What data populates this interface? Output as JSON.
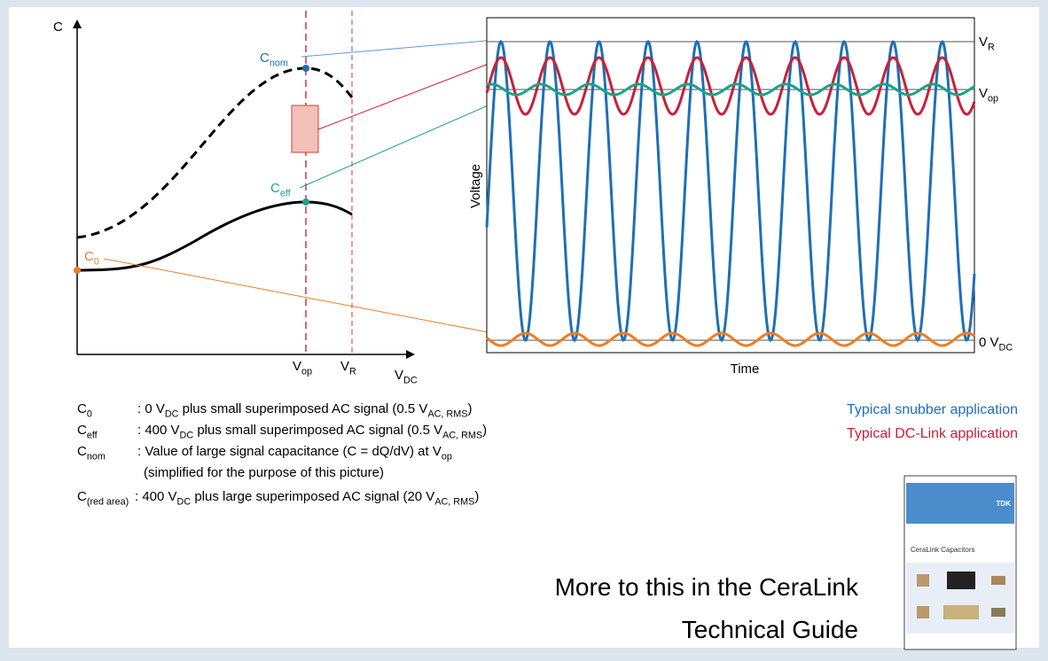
{
  "left_chart": {
    "y_axis": "C",
    "x_axis": [
      "V",
      "DC"
    ],
    "x_markers": [
      [
        "V",
        "op"
      ],
      [
        "V",
        "R"
      ]
    ],
    "points": {
      "nominal": [
        "C",
        "nom"
      ],
      "effective": [
        "C",
        "eff"
      ],
      "zero": [
        "C",
        "0"
      ]
    }
  },
  "right_chart": {
    "y_axis": "Voltage",
    "x_axis": "Time",
    "levels": [
      [
        "V",
        "R"
      ],
      [
        "V",
        "op"
      ],
      [
        "0 V",
        "DC"
      ]
    ]
  },
  "definitions": [
    {
      "term": [
        "C",
        "0"
      ],
      "lines": [
        [
          ": 0 V",
          "DC",
          " plus small superimposed AC signal (0.5 V",
          "AC, RMS",
          ")"
        ]
      ]
    },
    {
      "term": [
        "C",
        "eff"
      ],
      "lines": [
        [
          ": 400 V",
          "DC",
          " plus small superimposed AC signal (0.5 V",
          "AC, RMS",
          ")"
        ]
      ]
    },
    {
      "term": [
        "C",
        "nom"
      ],
      "lines": [
        [
          ": Value of large signal capacitance (C = dQ/dV) at V",
          "op"
        ],
        [
          "(simplified for the purpose of this picture)"
        ]
      ]
    },
    {
      "term": [
        "C",
        "(red area)"
      ],
      "lines": [
        [
          ": 400 V",
          "DC",
          " plus large superimposed AC signal (20 V",
          "AC, RMS",
          ")"
        ]
      ]
    }
  ],
  "legend": [
    "Typical snubber application",
    "Typical DC-Link application"
  ],
  "footer": [
    "More to this in the CeraLink",
    "Technical Guide"
  ],
  "book": {
    "brand": "TDK",
    "title": "CeraLink Capacitors"
  }
}
